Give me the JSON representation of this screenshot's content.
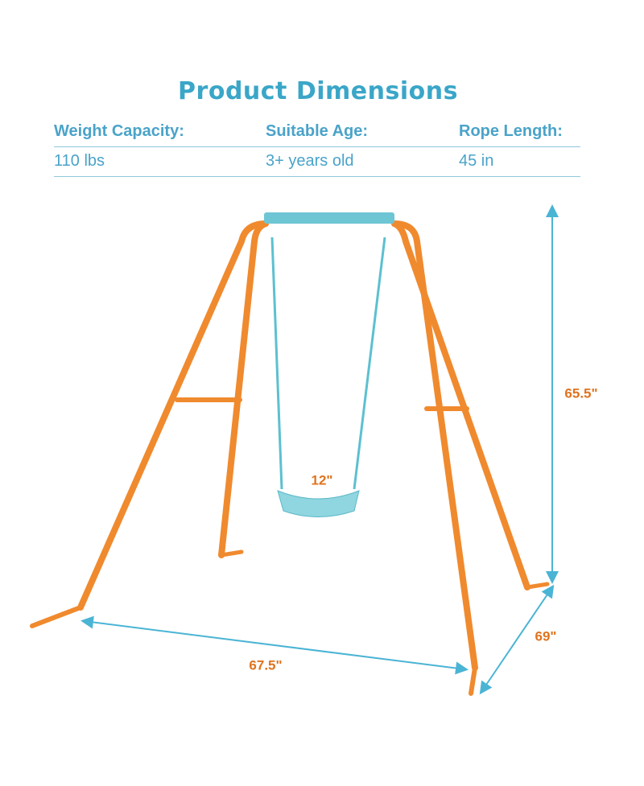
{
  "header": {
    "title": "Product Dimensions"
  },
  "specs": {
    "labels": [
      "Weight Capacity:",
      "Suitable Age:",
      "Rope Length:"
    ],
    "values": [
      "110 lbs",
      "3+ years old",
      "45 in"
    ]
  },
  "dimensions": {
    "seat_width": "12\"",
    "height": "65.5\"",
    "depth": "69\"",
    "width": "67.5\""
  }
}
